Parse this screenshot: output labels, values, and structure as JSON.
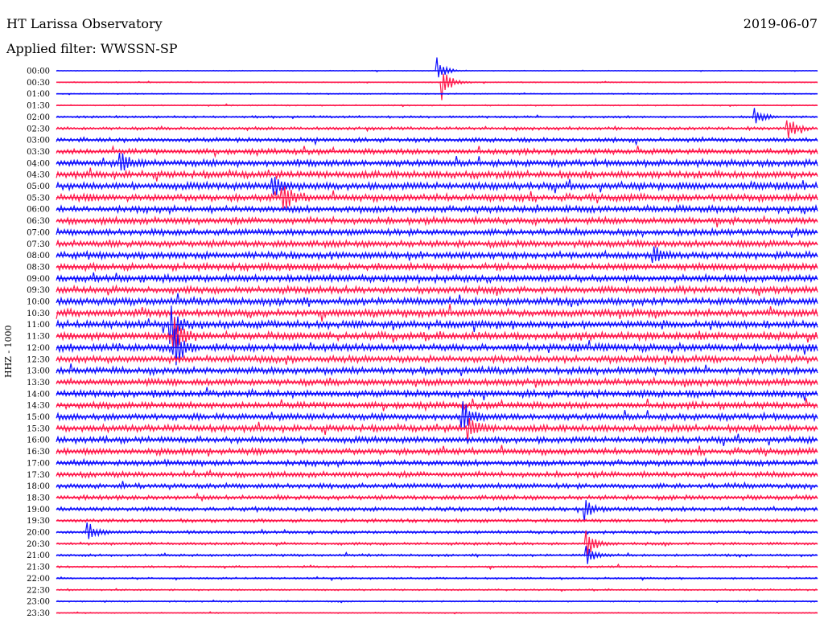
{
  "header": {
    "title": "HT Larissa Observatory",
    "date": "2019-06-07",
    "filter": "Applied filter: WWSSN-SP"
  },
  "chart_data": {
    "type": "line",
    "ylabel": "HHZ - 1000",
    "row_labels": [
      "00:00",
      "00:30",
      "01:00",
      "01:30",
      "02:00",
      "02:30",
      "03:00",
      "03:30",
      "04:00",
      "04:30",
      "05:00",
      "05:30",
      "06:00",
      "06:30",
      "07:00",
      "07:30",
      "08:00",
      "08:30",
      "09:00",
      "09:30",
      "10:00",
      "10:30",
      "11:00",
      "11:30",
      "12:00",
      "12:30",
      "13:00",
      "13:30",
      "14:00",
      "14:30",
      "15:00",
      "15:30",
      "16:00",
      "16:30",
      "17:00",
      "17:30",
      "18:00",
      "18:30",
      "19:00",
      "19:30",
      "20:00",
      "20:30",
      "21:00",
      "21:30",
      "22:00",
      "22:30",
      "23:00",
      "23:30"
    ],
    "series_colors": [
      "#1010ff",
      "#ff1a4d"
    ],
    "noise_amplitude": [
      0.4,
      0.5,
      0.5,
      0.6,
      1.1,
      1.6,
      2.2,
      2.8,
      3.5,
      3.6,
      3.8,
      3.6,
      3.4,
      3.4,
      3.3,
      3.4,
      3.5,
      3.6,
      3.7,
      3.6,
      3.7,
      3.8,
      3.8,
      3.8,
      3.8,
      3.6,
      3.6,
      3.5,
      3.5,
      3.4,
      3.4,
      3.4,
      3.3,
      3.2,
      3.0,
      2.8,
      2.6,
      2.3,
      2.1,
      1.8,
      1.6,
      1.4,
      1.2,
      1.0,
      0.9,
      0.8,
      0.7,
      0.6
    ],
    "events": [
      {
        "row": 0,
        "minute": 15.0,
        "amplitude": 18
      },
      {
        "row": 1,
        "minute": 15.2,
        "amplitude": 22
      },
      {
        "row": 4,
        "minute": 27.5,
        "amplitude": 12
      },
      {
        "row": 5,
        "minute": 28.8,
        "amplitude": 16
      },
      {
        "row": 8,
        "minute": 2.5,
        "amplitude": 14
      },
      {
        "row": 10,
        "minute": 8.5,
        "amplitude": 16
      },
      {
        "row": 11,
        "minute": 8.9,
        "amplitude": 20
      },
      {
        "row": 16,
        "minute": 23.5,
        "amplitude": 14
      },
      {
        "row": 22,
        "minute": 4.5,
        "amplitude": 22
      },
      {
        "row": 23,
        "minute": 4.6,
        "amplitude": 26
      },
      {
        "row": 24,
        "minute": 4.7,
        "amplitude": 24
      },
      {
        "row": 30,
        "minute": 16.0,
        "amplitude": 18
      },
      {
        "row": 31,
        "minute": 16.2,
        "amplitude": 16
      },
      {
        "row": 38,
        "minute": 20.8,
        "amplitude": 16
      },
      {
        "row": 40,
        "minute": 1.2,
        "amplitude": 14
      },
      {
        "row": 41,
        "minute": 20.9,
        "amplitude": 18
      },
      {
        "row": 42,
        "minute": 20.9,
        "amplitude": 12
      }
    ],
    "x_range_minutes": [
      0,
      30
    ]
  }
}
